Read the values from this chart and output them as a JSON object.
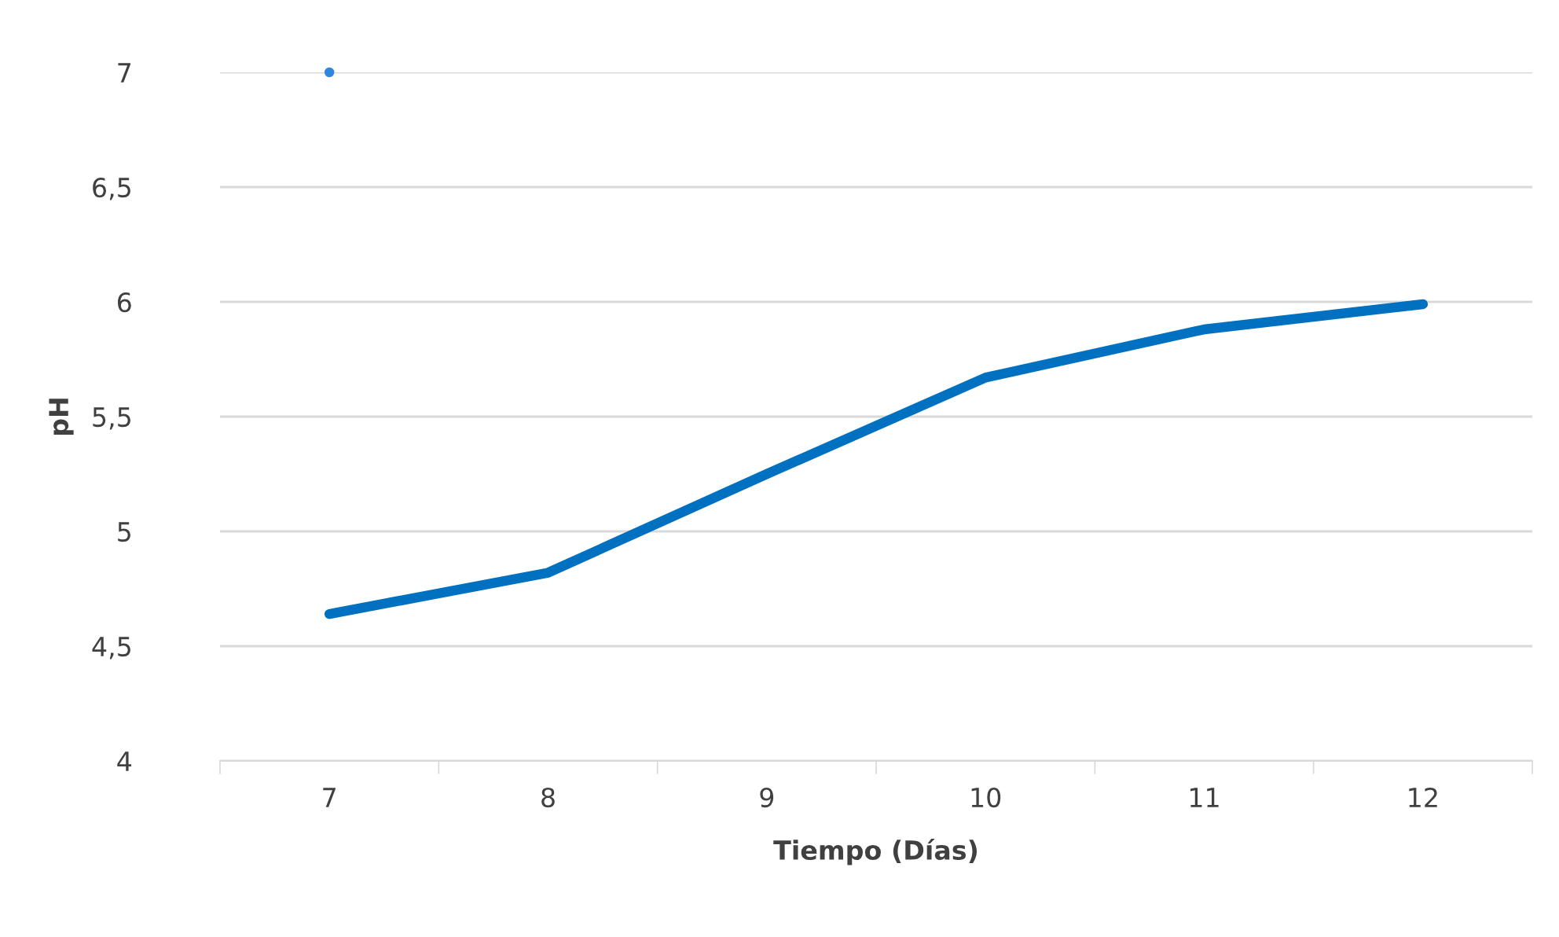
{
  "chart_data": {
    "type": "line",
    "xlabel": "Tiempo (Días)",
    "ylabel": "pH",
    "categories": [
      "7",
      "8",
      "9",
      "10",
      "11",
      "12"
    ],
    "series": [
      {
        "color": "#0070c0",
        "values": [
          4.64,
          4.82,
          5.25,
          5.67,
          5.88,
          5.99
        ]
      },
      {
        "type": "scatter",
        "marker": "circle",
        "color": "#2e86de",
        "values": [
          7,
          null,
          null,
          null,
          null,
          null
        ]
      }
    ],
    "ylim": [
      4,
      7
    ],
    "yticks": [
      4,
      {
        "value": 4.5,
        "label": "4,5"
      },
      5,
      {
        "value": 5.5,
        "label": "5,5"
      },
      6,
      {
        "value": 6.5,
        "label": "6,5"
      },
      7
    ],
    "grid": "y",
    "legend": false,
    "marker": "none",
    "line_style": "solid"
  }
}
